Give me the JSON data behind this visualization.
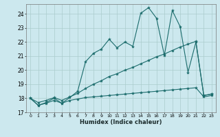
{
  "xlabel": "Humidex (Indice chaleur)",
  "bg_color": "#cce8ee",
  "grid_color": "#aacccc",
  "line_color": "#1a6b6b",
  "xlim": [
    -0.5,
    23.5
  ],
  "ylim": [
    17.0,
    24.7
  ],
  "yticks": [
    17,
    18,
    19,
    20,
    21,
    22,
    23,
    24
  ],
  "xticks": [
    0,
    1,
    2,
    3,
    4,
    5,
    6,
    7,
    8,
    9,
    10,
    11,
    12,
    13,
    14,
    15,
    16,
    17,
    18,
    19,
    20,
    21,
    22,
    23
  ],
  "x": [
    0,
    1,
    2,
    3,
    4,
    5,
    6,
    7,
    8,
    9,
    10,
    11,
    12,
    13,
    14,
    15,
    16,
    17,
    18,
    19,
    20,
    21,
    22,
    23
  ],
  "y_jagged": [
    18.0,
    17.5,
    17.7,
    18.0,
    17.65,
    18.05,
    18.5,
    20.6,
    21.2,
    21.5,
    22.2,
    21.6,
    22.0,
    21.7,
    24.05,
    24.45,
    23.7,
    21.05,
    24.25,
    23.1,
    19.85,
    22.0,
    18.2,
    18.3
  ],
  "y_diag": [
    18.0,
    17.7,
    17.85,
    18.05,
    17.85,
    18.1,
    18.35,
    18.7,
    19.0,
    19.25,
    19.55,
    19.75,
    20.0,
    20.2,
    20.45,
    20.7,
    20.95,
    21.15,
    21.4,
    21.65,
    21.85,
    22.05,
    18.2,
    18.3
  ],
  "y_flat": [
    18.0,
    17.5,
    17.65,
    17.85,
    17.65,
    17.85,
    17.95,
    18.05,
    18.1,
    18.15,
    18.2,
    18.25,
    18.3,
    18.35,
    18.4,
    18.45,
    18.5,
    18.55,
    18.6,
    18.65,
    18.7,
    18.75,
    18.1,
    18.2
  ]
}
